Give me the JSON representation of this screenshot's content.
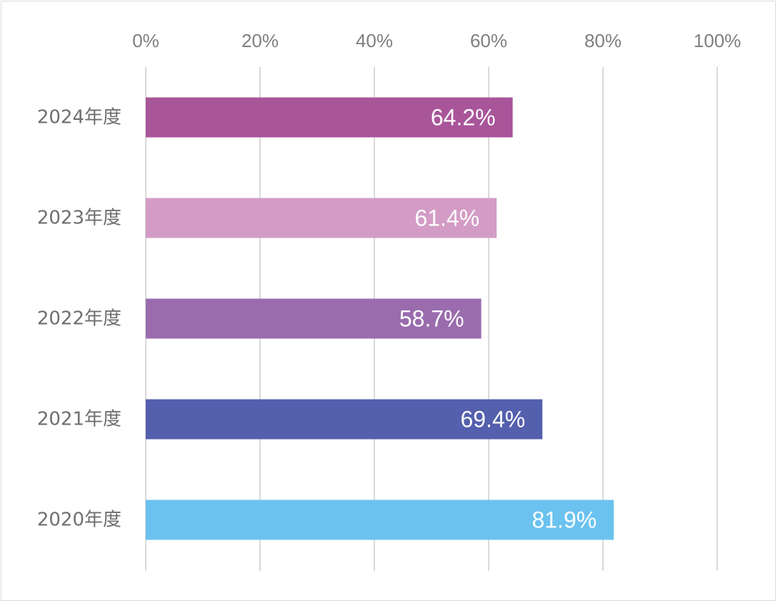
{
  "chart_data": {
    "type": "bar",
    "orientation": "horizontal",
    "categories": [
      "2024年度",
      "2023年度",
      "2022年度",
      "2021年度",
      "2020年度"
    ],
    "values": [
      64.2,
      61.4,
      58.7,
      69.4,
      81.9
    ],
    "data_labels": [
      "64.2%",
      "61.4%",
      "58.7%",
      "69.4%",
      "81.9%"
    ],
    "colors": [
      "#a8559a",
      "#d39cc6",
      "#9a6cae",
      "#545fad",
      "#6bc2ef"
    ],
    "xlim": [
      0,
      100
    ],
    "x_ticks": [
      0,
      20,
      40,
      60,
      80,
      100
    ],
    "x_tick_labels": [
      "0%",
      "20%",
      "40%",
      "60%",
      "80%",
      "100%"
    ],
    "x_axis_position": "top",
    "grid": true,
    "gridline_color": "#d9d9d9",
    "legend": false,
    "title": "",
    "xlabel": "",
    "ylabel": ""
  }
}
